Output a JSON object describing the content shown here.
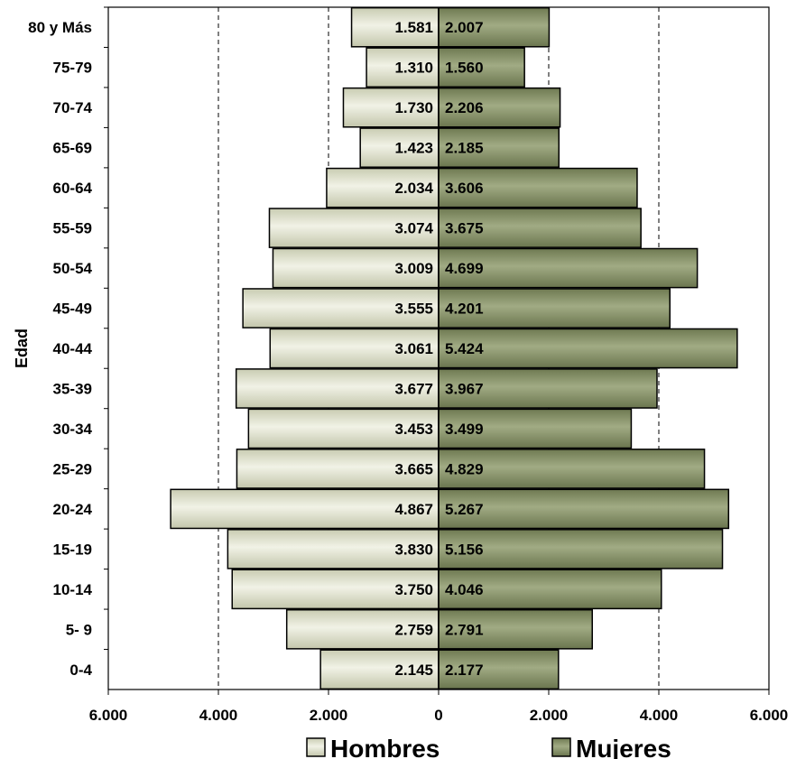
{
  "chart_data": {
    "type": "bar",
    "orientation": "horizontal-population-pyramid",
    "ylabel": "Edad",
    "xlabel": "",
    "categories": [
      "80 y Más",
      "75-79",
      "70-74",
      "65-69",
      "60-64",
      "55-59",
      "50-54",
      "45-49",
      "40-44",
      "35-39",
      "30-34",
      "25-29",
      "20-24",
      "15-19",
      "10-14",
      "5- 9",
      "0-4"
    ],
    "series": [
      {
        "name": "Hombres",
        "color": "#d9dcc6",
        "values": [
          1581,
          1310,
          1730,
          1423,
          2034,
          3074,
          3009,
          3555,
          3061,
          3677,
          3453,
          3665,
          4867,
          3830,
          3750,
          2759,
          2145
        ],
        "labels": [
          "1.581",
          "1.310",
          "1.730",
          "1.423",
          "2.034",
          "3.074",
          "3.009",
          "3.555",
          "3.061",
          "3.677",
          "3.453",
          "3.665",
          "4.867",
          "3.830",
          "3.750",
          "2.759",
          "2.145"
        ]
      },
      {
        "name": "Mujeres",
        "color": "#86916a",
        "values": [
          2007,
          1560,
          2206,
          2185,
          3606,
          3675,
          4699,
          4201,
          5424,
          3967,
          3499,
          4829,
          5267,
          5156,
          4046,
          2791,
          2177
        ],
        "labels": [
          "2.007",
          "1.560",
          "2.206",
          "2.185",
          "3.606",
          "3.675",
          "4.699",
          "4.201",
          "5.424",
          "3.967",
          "3.499",
          "4.829",
          "5.267",
          "5.156",
          "4.046",
          "2.791",
          "2.177"
        ]
      }
    ],
    "xlim": [
      -6000,
      6000
    ],
    "xticks": [
      -6000,
      -4000,
      -2000,
      0,
      2000,
      4000,
      6000
    ],
    "xtick_labels": [
      "6.000",
      "4.000",
      "2.000",
      "0",
      "2.000",
      "4.000",
      "6.000"
    ],
    "gridlines": [
      -4000,
      -2000,
      2000,
      4000
    ],
    "grid": "vertical-dashed",
    "legend": "bottom"
  }
}
